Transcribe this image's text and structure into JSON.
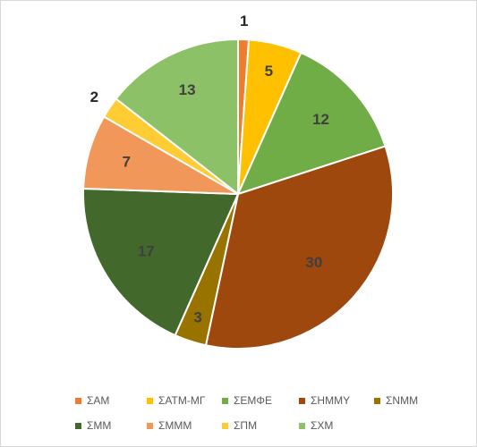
{
  "chart_data": {
    "type": "pie",
    "title": "",
    "categories": [
      "ΣΑΜ",
      "ΣΑΤΜ-ΜΓ",
      "ΣΕΜΦΕ",
      "ΣΗΜΜΥ",
      "ΣΝΜΜ",
      "ΣΜΜ",
      "ΣΜΜΜ",
      "ΣΠΜ",
      "ΣΧΜ"
    ],
    "values": [
      1,
      5,
      12,
      30,
      3,
      17,
      7,
      2,
      13
    ],
    "colors": [
      "#ED7D31",
      "#FFC000",
      "#70AD47",
      "#9E480E",
      "#997300",
      "#43682B",
      "#F1975A",
      "#FFCD33",
      "#8CC168"
    ],
    "label_colors": [
      "#262626",
      "#404040",
      "#404040",
      "#404040",
      "#404040",
      "#404040",
      "#404040",
      "#262626",
      "#404040"
    ],
    "legend": {
      "position": "bottom"
    },
    "start_angle_deg": 0,
    "direction": "clockwise"
  }
}
